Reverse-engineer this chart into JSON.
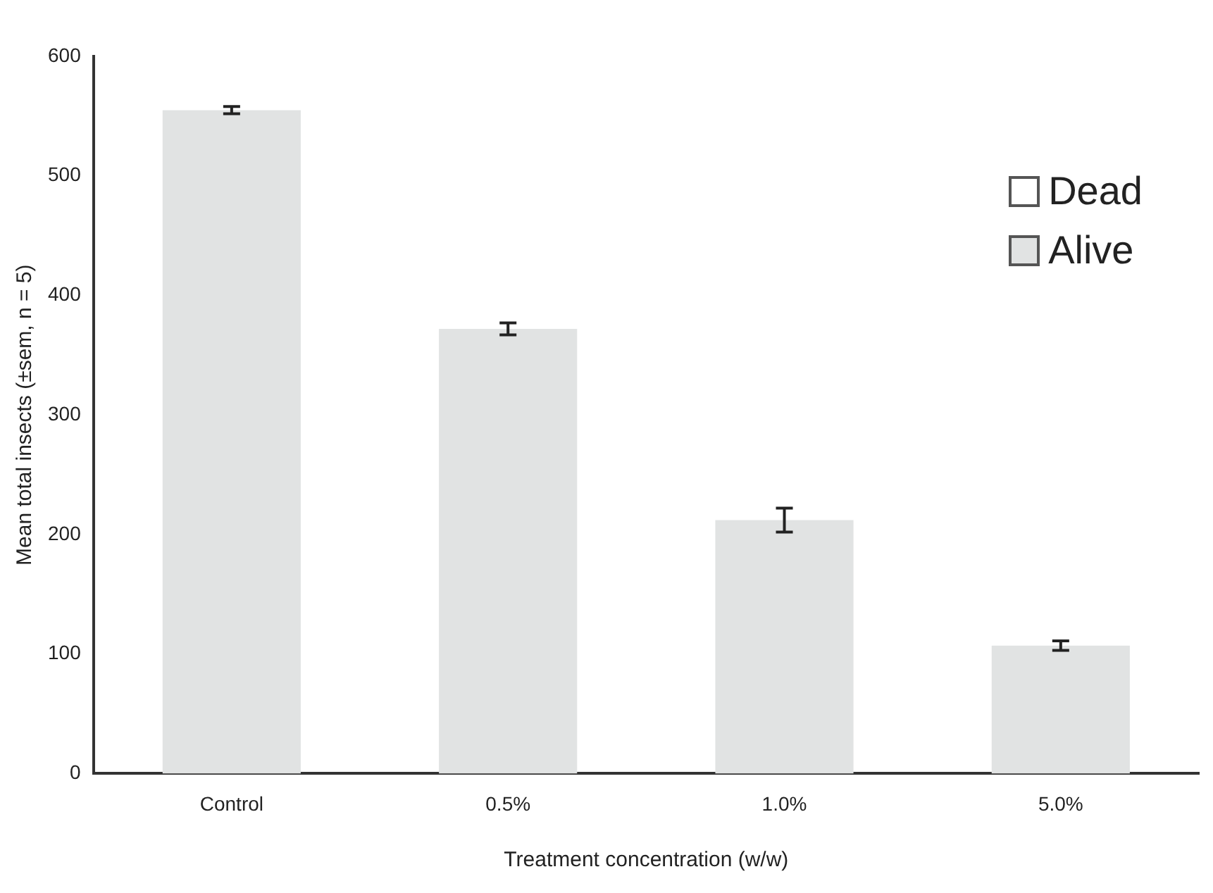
{
  "chart_data": {
    "type": "bar",
    "stacked": true,
    "xlabel": "Treatment concentration (w/w)",
    "ylabel": "Mean total insects (±sem, n = 5)",
    "categories": [
      "Control",
      "0.5%",
      "1.0%",
      "5.0%"
    ],
    "series": [
      {
        "name": "Alive",
        "color": "#e1e3e3",
        "values": [
          555,
          372,
          212,
          107
        ],
        "errors": [
          3,
          5,
          10,
          4
        ]
      },
      {
        "name": "Dead",
        "color": "#ffffff",
        "values": [
          0,
          0,
          0,
          0
        ]
      }
    ],
    "ylim": [
      0,
      600
    ],
    "yticks": [
      0,
      100,
      200,
      300,
      400,
      500,
      600
    ],
    "grid": false,
    "legend": "top right"
  }
}
